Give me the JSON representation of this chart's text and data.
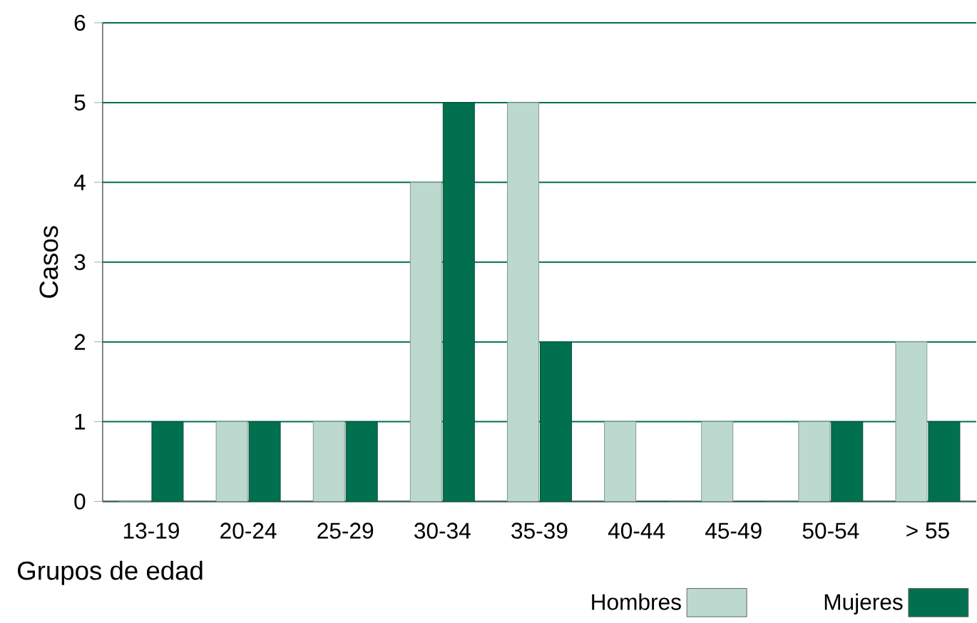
{
  "chart_data": {
    "type": "bar",
    "xlabel": "Grupos de edad",
    "ylabel": "Casos",
    "categories": [
      "13-19",
      "20-24",
      "25-29",
      "30-34",
      "35-39",
      "40-44",
      "45-49",
      "50-54",
      "> 55"
    ],
    "series": [
      {
        "name": "Hombres",
        "color": "#bcd9cf",
        "values": [
          0,
          1,
          1,
          4,
          5,
          1,
          1,
          1,
          2
        ]
      },
      {
        "name": "Mujeres",
        "color": "#00704f",
        "values": [
          1,
          1,
          1,
          5,
          2,
          0,
          0,
          1,
          1
        ]
      }
    ],
    "ylim": [
      0,
      6
    ],
    "yticks": [
      0,
      1,
      2,
      3,
      4,
      5,
      6
    ],
    "grid": "y",
    "legend": "bottom right"
  }
}
